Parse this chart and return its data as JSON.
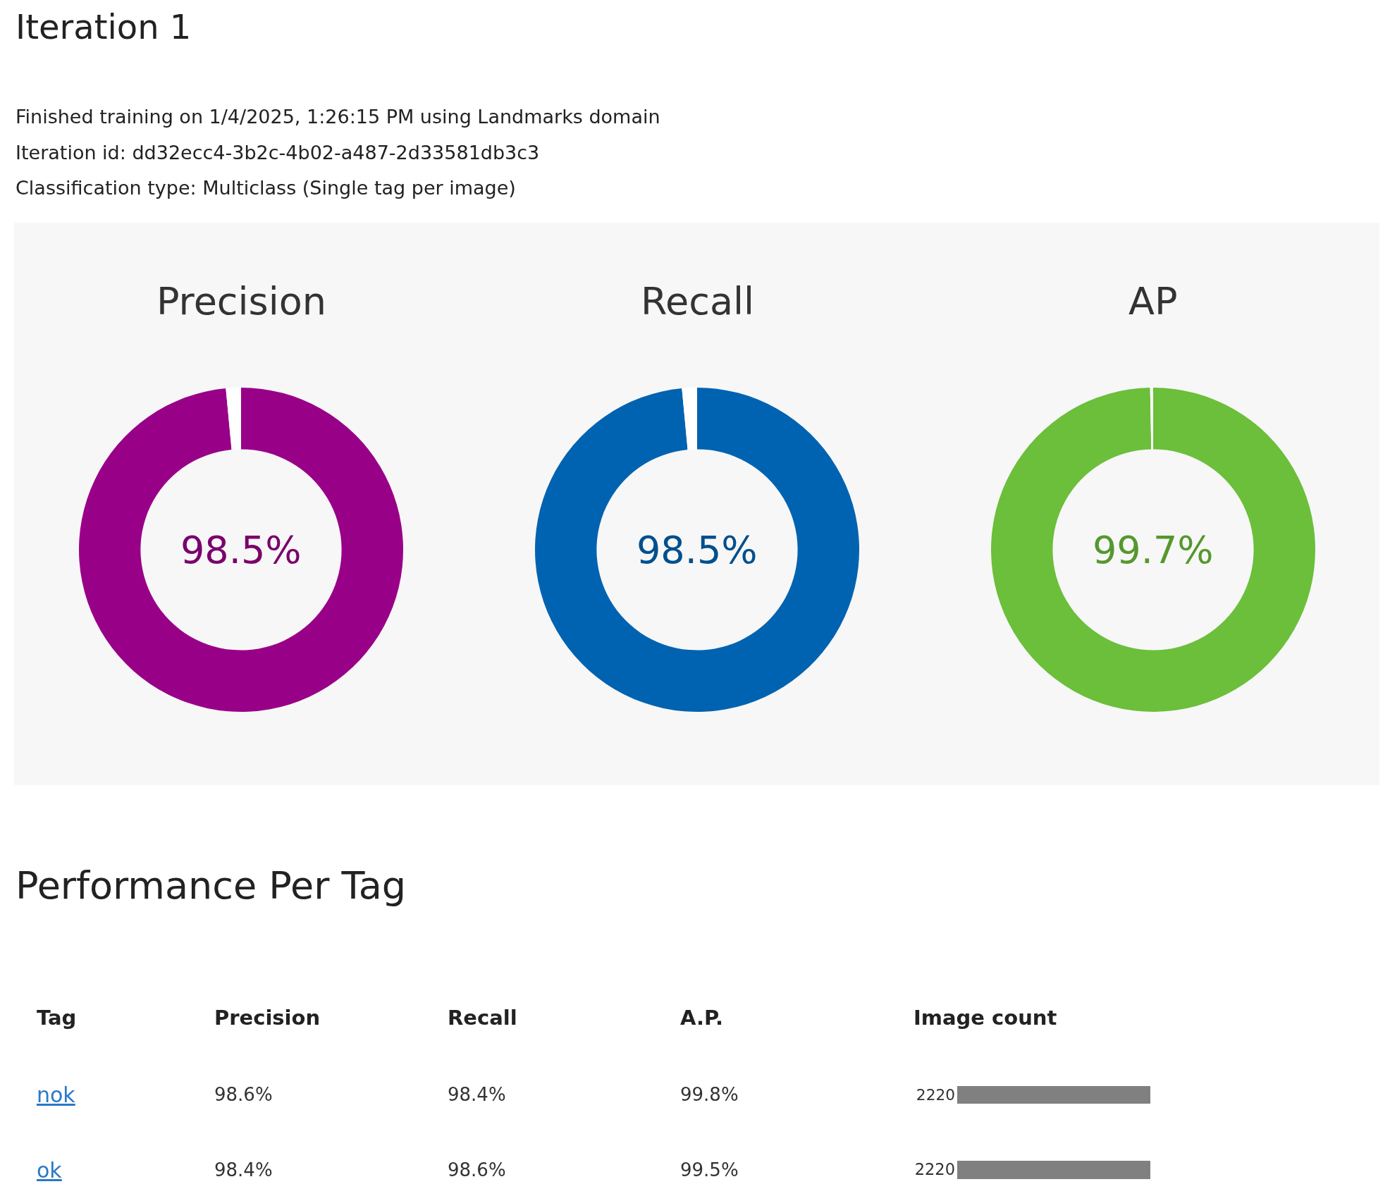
{
  "chart_data": [
    {
      "type": "other",
      "title": "Iteration 1",
      "annotations": [
        "Finished training on 1/4/2025, 1:26:15 PM using Landmarks domain",
        "Iteration id: dd32ecc4-3b2c-4b02-a487-2d33581db3c3",
        "Classification type: Multiclass (Single tag per image)"
      ]
    },
    {
      "type": "donut",
      "title": "Precision",
      "categories": [
        null,
        null
      ],
      "values": [
        98.5,
        1.5
      ],
      "colors": [
        "#990088",
        "#ffffff"
      ],
      "annotations": [
        "98.5%"
      ]
    },
    {
      "type": "donut",
      "title": "Recall",
      "categories": [
        null,
        null
      ],
      "values": [
        98.5,
        1.5
      ],
      "colors": [
        "#0063b1",
        "#ffffff"
      ],
      "annotations": [
        "98.5%"
      ]
    },
    {
      "type": "donut",
      "title": "AP",
      "categories": [
        null,
        null
      ],
      "values": [
        99.7,
        0.3
      ],
      "colors": [
        "#6bbf3a",
        "#ffffff"
      ],
      "annotations": [
        "99.7%"
      ]
    },
    {
      "type": "other",
      "title": "Performance Per Tag"
    },
    {
      "type": "bar",
      "orientation": "horizontal",
      "categories": [
        "nok",
        "ok"
      ],
      "values": [
        2220,
        2220
      ],
      "color": "#808080",
      "data_labels": true,
      "annotations": [
        "Tag",
        "Precision",
        "Recall",
        "A.P.",
        "Image count",
        "98.6%",
        "98.4%",
        "99.8%",
        "98.4%",
        "98.6%",
        "99.5%"
      ]
    }
  ]
}
